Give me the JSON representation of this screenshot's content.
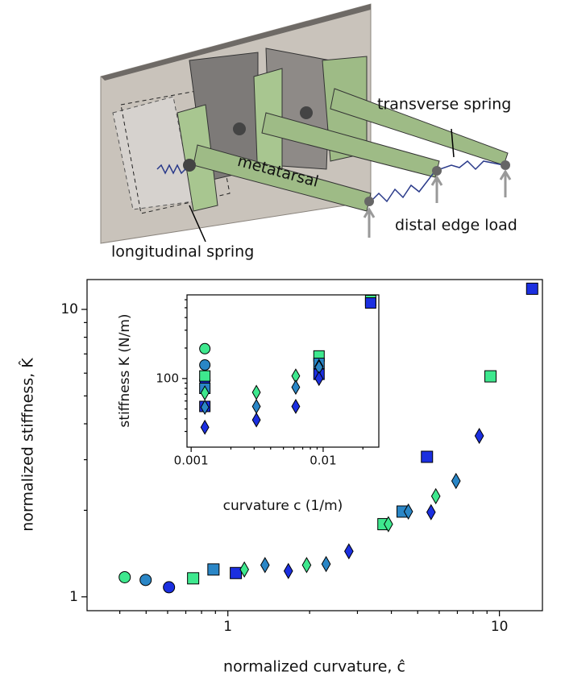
{
  "illustration": {
    "labels": [
      "transverse spring",
      "metatarsal",
      "distal edge load",
      "longitudinal spring"
    ]
  },
  "chart_data": [
    {
      "type": "scatter",
      "xlabel": "normalized curvature, ĉ",
      "ylabel": "normalized stiffness, K̂",
      "log_x": true,
      "log_y": true,
      "xlim": [
        0.303,
        14.4
      ],
      "ylim": [
        0.895,
        12.7
      ],
      "xticks": [
        1,
        10
      ],
      "yticks": [
        1,
        10
      ],
      "xminorticks": [
        0.4,
        0.5,
        0.6,
        0.7,
        0.8,
        0.9,
        2,
        3,
        4,
        5,
        6,
        7,
        8,
        9
      ],
      "yminorticks": [
        2,
        3,
        4,
        5,
        6,
        7,
        8,
        9
      ],
      "series": [
        {
          "marker": "circle",
          "color": "#3ee88e",
          "x": [
            0.417
          ],
          "values": [
            1.17
          ]
        },
        {
          "marker": "circle",
          "color": "#2a86c6",
          "x": [
            0.498
          ],
          "values": [
            1.145
          ]
        },
        {
          "marker": "circle",
          "color": "#1b2fe0",
          "x": [
            0.607
          ],
          "values": [
            1.08
          ]
        },
        {
          "marker": "square",
          "color": "#3ee88e",
          "x": [
            0.745,
            3.74,
            9.27
          ],
          "values": [
            1.16,
            1.79,
            5.85
          ]
        },
        {
          "marker": "square",
          "color": "#2a86c6",
          "x": [
            0.885,
            4.4
          ],
          "values": [
            1.245,
            1.98
          ]
        },
        {
          "marker": "square",
          "color": "#1b2fe0",
          "x": [
            1.07,
            5.41,
            13.2
          ],
          "values": [
            1.21,
            3.07,
            11.8
          ]
        },
        {
          "marker": "diamond",
          "color": "#3ee88e",
          "x": [
            1.15,
            1.95,
            3.9,
            5.83
          ],
          "values": [
            1.245,
            1.29,
            1.79,
            2.24
          ]
        },
        {
          "marker": "diamond",
          "color": "#2a86c6",
          "x": [
            1.37,
            2.3,
            4.62,
            6.92
          ],
          "values": [
            1.29,
            1.3,
            1.98,
            2.53
          ]
        },
        {
          "marker": "diamond",
          "color": "#1b2fe0",
          "x": [
            1.67,
            2.79,
            5.6,
            8.43
          ],
          "values": [
            1.23,
            1.44,
            1.97,
            3.63
          ]
        }
      ]
    },
    {
      "type": "scatter",
      "xlabel": "curvature c (1/m)",
      "ylabel": "stiffness K (N/m)",
      "log_x": true,
      "log_y": true,
      "xlim": [
        0.00093,
        0.0264
      ],
      "ylim": [
        21,
        670
      ],
      "xticks": [
        0.001,
        0.01
      ],
      "yticks": [
        100
      ],
      "xminorticks": [
        0.002,
        0.003,
        0.004,
        0.005,
        0.006,
        0.007,
        0.008,
        0.009,
        0.02
      ],
      "yminorticks": [
        30,
        40,
        50,
        60,
        70,
        80,
        90,
        200,
        300,
        400,
        500,
        600
      ],
      "series": [
        {
          "marker": "circle",
          "color": "#3ee88e",
          "x": [
            0.00127
          ],
          "values": [
            197
          ]
        },
        {
          "marker": "circle",
          "color": "#2a86c6",
          "x": [
            0.00127
          ],
          "values": [
            136
          ]
        },
        {
          "marker": "circle",
          "color": "#1b2fe0",
          "x": [
            0.00127
          ],
          "values": [
            96
          ]
        },
        {
          "marker": "square",
          "color": "#3ee88e",
          "x": [
            0.00127,
            0.0093,
            0.0229
          ],
          "values": [
            106,
            167,
            589
          ]
        },
        {
          "marker": "square",
          "color": "#2a86c6",
          "x": [
            0.00127,
            0.0093
          ],
          "values": [
            80,
            141
          ]
        },
        {
          "marker": "square",
          "color": "#1b2fe0",
          "x": [
            0.00127,
            0.0093,
            0.0229
          ],
          "values": [
            53,
            110,
            557
          ]
        },
        {
          "marker": "diamond",
          "color": "#3ee88e",
          "x": [
            0.00127,
            0.00312,
            0.0062,
            0.0093
          ],
          "values": [
            72,
            73,
            106,
            132
          ]
        },
        {
          "marker": "diamond",
          "color": "#2a86c6",
          "x": [
            0.00127,
            0.00312,
            0.0062,
            0.0093
          ],
          "values": [
            52,
            53,
            82,
            129
          ]
        },
        {
          "marker": "diamond",
          "color": "#1b2fe0",
          "x": [
            0.00127,
            0.00312,
            0.0062,
            0.0093
          ],
          "values": [
            33,
            39,
            53,
            100
          ]
        }
      ]
    }
  ]
}
